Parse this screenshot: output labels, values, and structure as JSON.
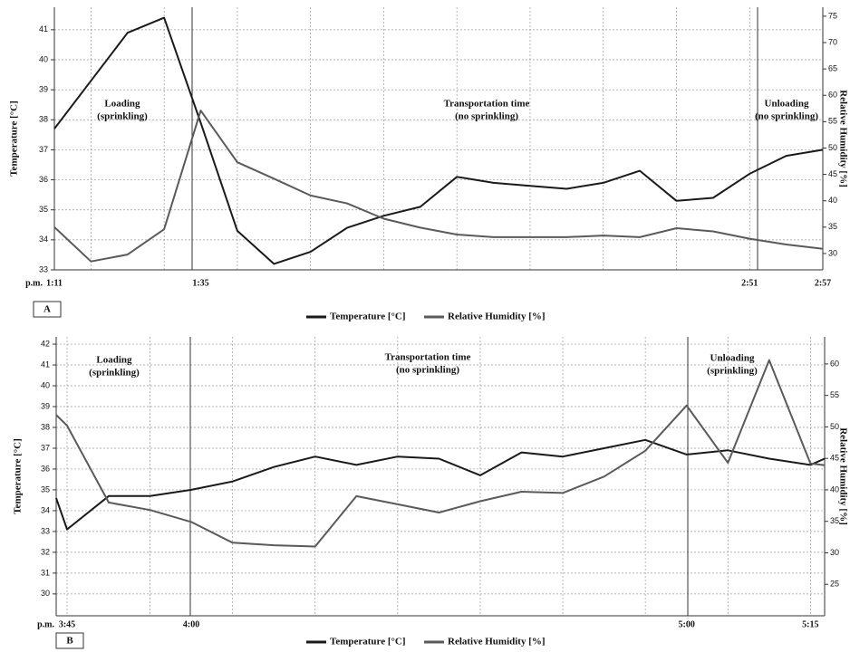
{
  "chart_data": [
    {
      "type": "line",
      "panel_label": "A",
      "x_prefix": "p.m.",
      "y_label": "Temperature [°C]",
      "y2_label": "Relative Humidity [%]",
      "categories": [
        "1:11",
        null,
        null,
        null,
        "1:35",
        null,
        null,
        null,
        null,
        null,
        null,
        null,
        null,
        null,
        null,
        null,
        null,
        null,
        null,
        "2:51",
        null,
        "2:57"
      ],
      "series": [
        {
          "name": "Temperature [°C]",
          "color": "#1a1a1a",
          "values": [
            37.7,
            39.3,
            40.9,
            41.4,
            37.9,
            34.3,
            33.2,
            33.6,
            34.4,
            34.8,
            35.1,
            36.1,
            35.9,
            35.8,
            35.7,
            35.9,
            36.3,
            35.3,
            35.4,
            36.2,
            36.8,
            37.0
          ]
        },
        {
          "name": "Relative Humidity [%]",
          "color": "#5a5a5a",
          "axis": "y2",
          "values": [
            35,
            28.5,
            29.8,
            34.6,
            57.1,
            47.3,
            44.2,
            41,
            39.5,
            36.6,
            34.9,
            33.6,
            33.1,
            33.1,
            33.1,
            33.4,
            33.1,
            34.8,
            34.2,
            32.8,
            31.7,
            30.9
          ]
        }
      ],
      "ylim": [
        33,
        41.75
      ],
      "yticks": [
        33,
        34,
        35,
        36,
        37,
        38,
        39,
        40,
        41
      ],
      "y2lim": [
        26.9,
        76.7
      ],
      "y2ticks": [
        30,
        35,
        40,
        45,
        50,
        55,
        60,
        65,
        70,
        75
      ],
      "grid": true,
      "annotations": [
        [
          "Loading",
          "(sprinkling)"
        ],
        [
          "Transportation time",
          "(no sprinkling)"
        ],
        [
          "Unloading",
          "(no sprinkling)"
        ]
      ]
    },
    {
      "type": "line",
      "panel_label": "B",
      "x_prefix": "p.m.",
      "y_label": "Temperature [°C]",
      "y2_label": "Relative Humidity [%]",
      "categories": [
        null,
        "3:45",
        null,
        null,
        "4:00",
        null,
        null,
        null,
        null,
        null,
        null,
        null,
        null,
        null,
        null,
        null,
        "5:00",
        null,
        null,
        "5:15",
        null
      ],
      "series": [
        {
          "name": "Temperature [°C]",
          "color": "#1a1a1a",
          "values": [
            34.6,
            33.1,
            34.7,
            34.7,
            35,
            35.4,
            36.1,
            36.6,
            36.2,
            36.6,
            36.5,
            35.7,
            36.8,
            36.6,
            37,
            37.4,
            36.7,
            36.9,
            36.5,
            36.2,
            36.5
          ]
        },
        {
          "name": "Relative Humidity [%]",
          "color": "#5a5a5a",
          "axis": "y2",
          "values": [
            51.9,
            50.2,
            38,
            36.8,
            34.9,
            31.6,
            31.2,
            31,
            39,
            37.7,
            36.4,
            38.2,
            39.7,
            39.5,
            42.1,
            46.2,
            53.4,
            44.3,
            60.6,
            44.2,
            43.9
          ]
        }
      ],
      "ylim": [
        28.95,
        42.35
      ],
      "yticks": [
        30,
        31,
        32,
        33,
        34,
        35,
        36,
        37,
        38,
        39,
        40,
        41,
        42
      ],
      "y2lim": [
        20,
        64.3
      ],
      "y2ticks": [
        25,
        30,
        35,
        40,
        45,
        50,
        55,
        60
      ],
      "grid": true,
      "annotations": [
        [
          "Loading",
          "(sprinkling)"
        ],
        [
          "Transportation time",
          "(no sprinkling)"
        ],
        [
          "Unloading",
          "(sprinkling)"
        ]
      ]
    }
  ]
}
